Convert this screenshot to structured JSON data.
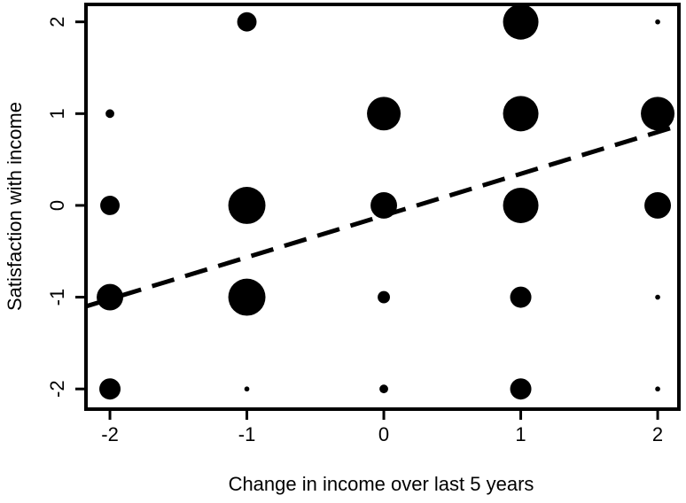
{
  "chart_data": {
    "type": "scatter",
    "x_label": "Change in income over last 5 years",
    "y_label": "Satisfaction with income",
    "x": [
      -1,
      1,
      2,
      -2,
      0,
      1,
      2,
      -2,
      -1,
      0,
      1,
      2,
      -2,
      -1,
      0,
      1,
      2,
      -2,
      -1,
      0,
      1,
      2
    ],
    "y": [
      2,
      2,
      2,
      1,
      1,
      1,
      1,
      0,
      0,
      0,
      0,
      0,
      -1,
      -1,
      -1,
      -1,
      -1,
      -2,
      -2,
      -2,
      -2,
      -2
    ],
    "sizes": [
      30,
      100,
      2,
      6,
      90,
      100,
      90,
      30,
      110,
      56,
      100,
      56,
      56,
      110,
      12,
      36,
      2,
      36,
      2,
      6,
      36,
      2
    ],
    "color": "#000000",
    "trend_line": {
      "x": [
        -2.175,
        2.155
      ],
      "y": [
        -1.1,
        0.87
      ]
    },
    "xlim": [
      -2.175,
      2.155
    ],
    "ylim": [
      -2.22,
      2.19
    ],
    "xticks": [
      -2,
      -1,
      0,
      1,
      2
    ],
    "yticks": [
      -2,
      -1,
      0,
      1,
      2
    ]
  }
}
